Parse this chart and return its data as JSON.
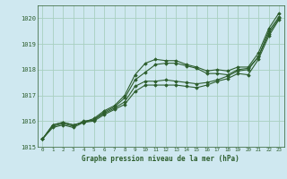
{
  "bg_color": "#cfe8f0",
  "grid_color": "#a8cfc0",
  "line_color": "#2d5e2d",
  "marker_color": "#2d5e2d",
  "xlabel": "Graphe pression niveau de la mer (hPa)",
  "ylim": [
    1015.0,
    1020.5
  ],
  "xlim": [
    -0.5,
    23.5
  ],
  "yticks": [
    1015,
    1016,
    1017,
    1018,
    1019,
    1020
  ],
  "xticks": [
    0,
    1,
    2,
    3,
    4,
    5,
    6,
    7,
    8,
    9,
    10,
    11,
    12,
    13,
    14,
    15,
    16,
    17,
    18,
    19,
    20,
    21,
    22,
    23
  ],
  "series": [
    [
      1015.3,
      1015.85,
      1015.95,
      1015.85,
      1015.95,
      1016.1,
      1016.4,
      1016.6,
      1017.0,
      1017.8,
      1018.25,
      1018.4,
      1018.35,
      1018.35,
      1018.2,
      1018.1,
      1017.95,
      1018.0,
      1017.95,
      1018.1,
      1018.1,
      1018.65,
      1019.6,
      1020.2
    ],
    [
      1015.3,
      1015.85,
      1015.95,
      1015.85,
      1015.95,
      1016.05,
      1016.35,
      1016.55,
      1016.9,
      1017.6,
      1017.9,
      1018.2,
      1018.25,
      1018.25,
      1018.15,
      1018.05,
      1017.85,
      1017.85,
      1017.8,
      1018.0,
      1018.05,
      1018.5,
      1019.5,
      1020.05
    ],
    [
      1015.3,
      1015.8,
      1015.9,
      1015.8,
      1016.0,
      1016.05,
      1016.3,
      1016.5,
      1016.75,
      1017.35,
      1017.55,
      1017.55,
      1017.6,
      1017.55,
      1017.5,
      1017.45,
      1017.5,
      1017.6,
      1017.75,
      1017.95,
      1018.0,
      1018.5,
      1019.4,
      1020.0
    ],
    [
      1015.3,
      1015.75,
      1015.85,
      1015.75,
      1015.95,
      1016.0,
      1016.25,
      1016.45,
      1016.65,
      1017.15,
      1017.4,
      1017.4,
      1017.4,
      1017.4,
      1017.35,
      1017.3,
      1017.4,
      1017.55,
      1017.65,
      1017.85,
      1017.8,
      1018.4,
      1019.3,
      1019.95
    ]
  ]
}
